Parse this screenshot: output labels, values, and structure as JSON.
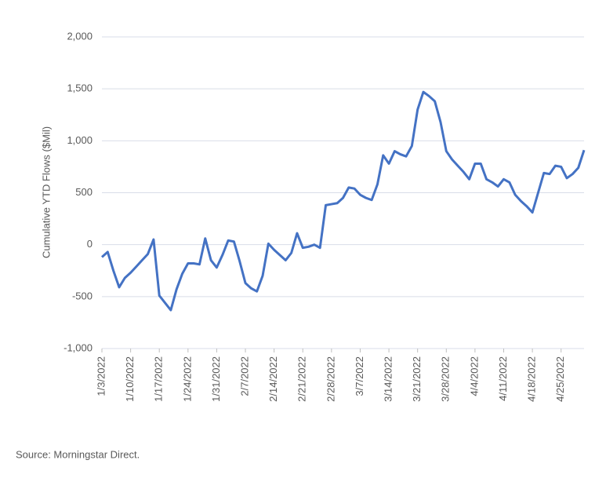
{
  "chart_data": {
    "type": "line",
    "y_label": "Cumulative YTD Flows ($Mil)",
    "source": "Source: Morningstar Direct.",
    "categories": [
      "1/3/2022",
      null,
      null,
      null,
      null,
      "1/10/2022",
      null,
      null,
      null,
      null,
      "1/17/2022",
      null,
      null,
      null,
      null,
      "1/24/2022",
      null,
      null,
      null,
      null,
      "1/31/2022",
      null,
      null,
      null,
      null,
      "2/7/2022",
      null,
      null,
      null,
      null,
      "2/14/2022",
      null,
      null,
      null,
      null,
      "2/21/2022",
      null,
      null,
      null,
      null,
      "2/28/2022",
      null,
      null,
      null,
      null,
      "3/7/2022",
      null,
      null,
      null,
      null,
      "3/14/2022",
      null,
      null,
      null,
      null,
      "3/21/2022",
      null,
      null,
      null,
      null,
      "3/28/2022",
      null,
      null,
      null,
      null,
      "4/4/2022",
      null,
      null,
      null,
      null,
      "4/11/2022",
      null,
      null,
      null,
      null,
      "4/18/2022",
      null,
      null,
      null,
      null,
      "4/25/2022",
      null,
      null,
      null,
      null
    ],
    "series": [
      {
        "name": "Cumulative YTD Flows",
        "color": "#4472c4",
        "values": [
          -120,
          -70,
          -250,
          -410,
          -320,
          -270,
          -210,
          -150,
          -90,
          50,
          -490,
          -560,
          -630,
          -430,
          -280,
          -180,
          -180,
          -190,
          60,
          -150,
          -220,
          -100,
          40,
          30,
          -160,
          -370,
          -420,
          -450,
          -300,
          10,
          -50,
          -100,
          -150,
          -80,
          110,
          -30,
          -20,
          0,
          -30,
          380,
          390,
          400,
          450,
          550,
          540,
          480,
          450,
          430,
          580,
          860,
          780,
          900,
          870,
          850,
          950,
          1300,
          1470,
          1430,
          1380,
          1180,
          900,
          820,
          760,
          700,
          630,
          780,
          780,
          630,
          600,
          560,
          630,
          600,
          480,
          420,
          370,
          310,
          500,
          690,
          680,
          760,
          750,
          640,
          680,
          740,
          910
        ]
      }
    ],
    "ylim": [
      -1000,
      2000
    ],
    "yticks": [
      {
        "value": -1000,
        "label": "-1,000"
      },
      -500,
      0,
      500,
      {
        "value": 1000,
        "label": "1,000"
      },
      {
        "value": 1500,
        "label": "1,500"
      },
      {
        "value": 2000,
        "label": "2,000"
      }
    ],
    "grid": true
  }
}
